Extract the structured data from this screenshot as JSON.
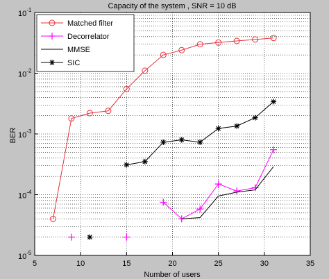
{
  "chart_data": {
    "type": "line",
    "title": "Capacity of the system , SNR = 10 dB",
    "x_label": "Number of users",
    "y_label": "BER",
    "x": [
      7,
      9,
      11,
      13,
      15,
      17,
      19,
      21,
      23,
      25,
      27,
      29,
      31
    ],
    "series": [
      {
        "name": "Matched filter",
        "color": "#e8303a",
        "marker": "circle",
        "values": [
          4e-05,
          0.0018,
          0.0022,
          0.0024,
          0.0055,
          0.011,
          0.02,
          0.024,
          0.03,
          0.032,
          0.034,
          0.036,
          0.038
        ]
      },
      {
        "name": "Decorrelator",
        "color": "#ff00ff",
        "marker": "plus",
        "values": [
          null,
          2e-05,
          null,
          null,
          2e-05,
          null,
          7.5e-05,
          4e-05,
          5.8e-05,
          0.00015,
          0.000115,
          0.00013,
          0.00055
        ]
      },
      {
        "name": "MMSE",
        "color": "#000000",
        "marker": "none",
        "values": [
          null,
          null,
          null,
          null,
          null,
          null,
          null,
          4e-05,
          4.2e-05,
          9.5e-05,
          0.00011,
          0.00012,
          0.00029
        ]
      },
      {
        "name": "SIC",
        "color": "#000000",
        "marker": "star",
        "values": [
          null,
          null,
          2e-05,
          null,
          0.00031,
          0.00035,
          0.00073,
          0.0008,
          0.00073,
          0.00123,
          0.00135,
          0.00185,
          0.0034
        ]
      }
    ],
    "xlim": [
      5,
      35
    ],
    "xticks": [
      5,
      10,
      15,
      20,
      25,
      30,
      35
    ],
    "ylim": [
      1e-05,
      0.1
    ],
    "log_y": true,
    "yticks": [
      {
        "value": 1e-05,
        "label": "10",
        "exponent": "-5"
      },
      {
        "value": 0.0001,
        "label": "10",
        "exponent": "-4"
      },
      {
        "value": 0.001,
        "label": "10",
        "exponent": "-3"
      },
      {
        "value": 0.01,
        "label": "10",
        "exponent": "-2"
      },
      {
        "value": 0.1,
        "label": "10",
        "exponent": "-1"
      }
    ],
    "grid": true,
    "minor_grid": true,
    "legend": "upper left"
  }
}
